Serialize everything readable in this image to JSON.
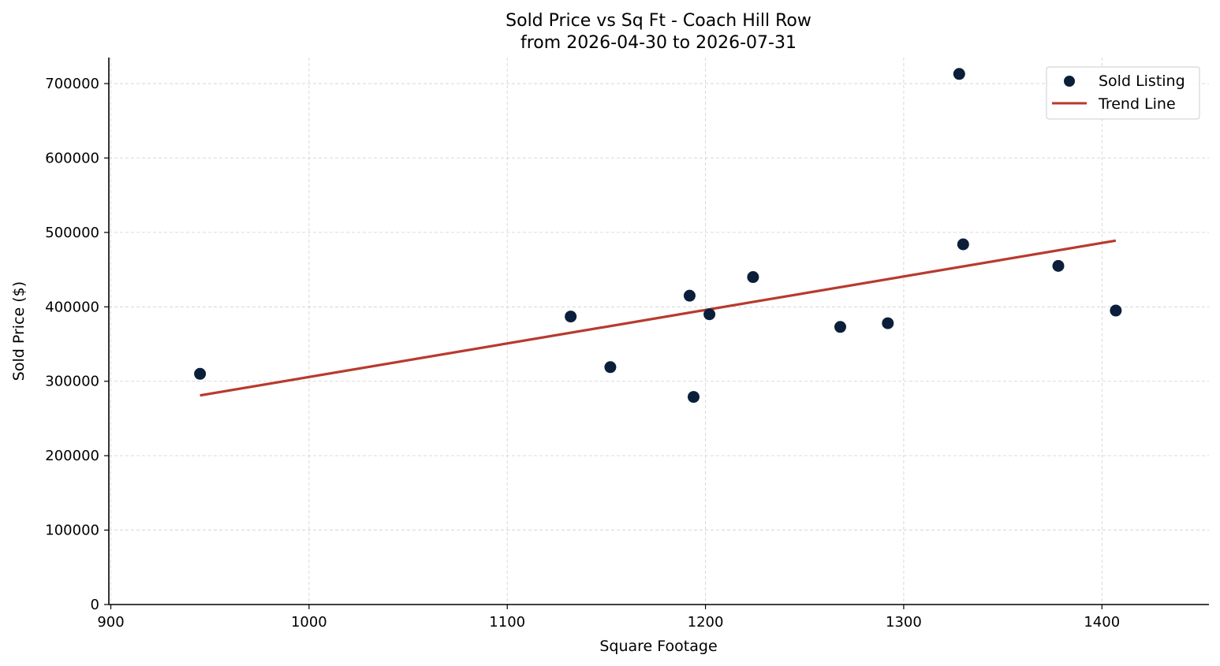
{
  "chart_data": {
    "type": "scatter",
    "title": "Sold Price vs Sq Ft - Coach Hill Row",
    "subtitle": "from 2026-04-30 to 2026-07-31",
    "xlabel": "Square Footage",
    "ylabel": "Sold Price ($)",
    "xlim": [
      899,
      1454
    ],
    "ylim": [
      0,
      735000
    ],
    "x_ticks": [
      900,
      1000,
      1100,
      1200,
      1300,
      1400
    ],
    "y_ticks": [
      0,
      100000,
      200000,
      300000,
      400000,
      500000,
      600000,
      700000
    ],
    "x_tick_labels": [
      "900",
      "1000",
      "1100",
      "1200",
      "1300",
      "1400"
    ],
    "y_tick_labels": [
      "0",
      "100000",
      "200000",
      "300000",
      "400000",
      "500000",
      "600000",
      "700000"
    ],
    "grid": true,
    "legend_position": "top-right",
    "series": [
      {
        "name": "Sold Listing",
        "kind": "scatter",
        "color": "#0b1f3a",
        "x": [
          945,
          1132,
          1152,
          1192,
          1194,
          1202,
          1224,
          1268,
          1292,
          1328,
          1330,
          1378,
          1407
        ],
        "y": [
          310000,
          387000,
          319000,
          415000,
          279000,
          390000,
          440000,
          373000,
          378000,
          713000,
          484000,
          455000,
          395000
        ]
      },
      {
        "name": "Trend Line",
        "kind": "line",
        "color": "#b83a2e",
        "x": [
          945,
          1407
        ],
        "y": [
          281000,
          489000
        ]
      }
    ]
  }
}
